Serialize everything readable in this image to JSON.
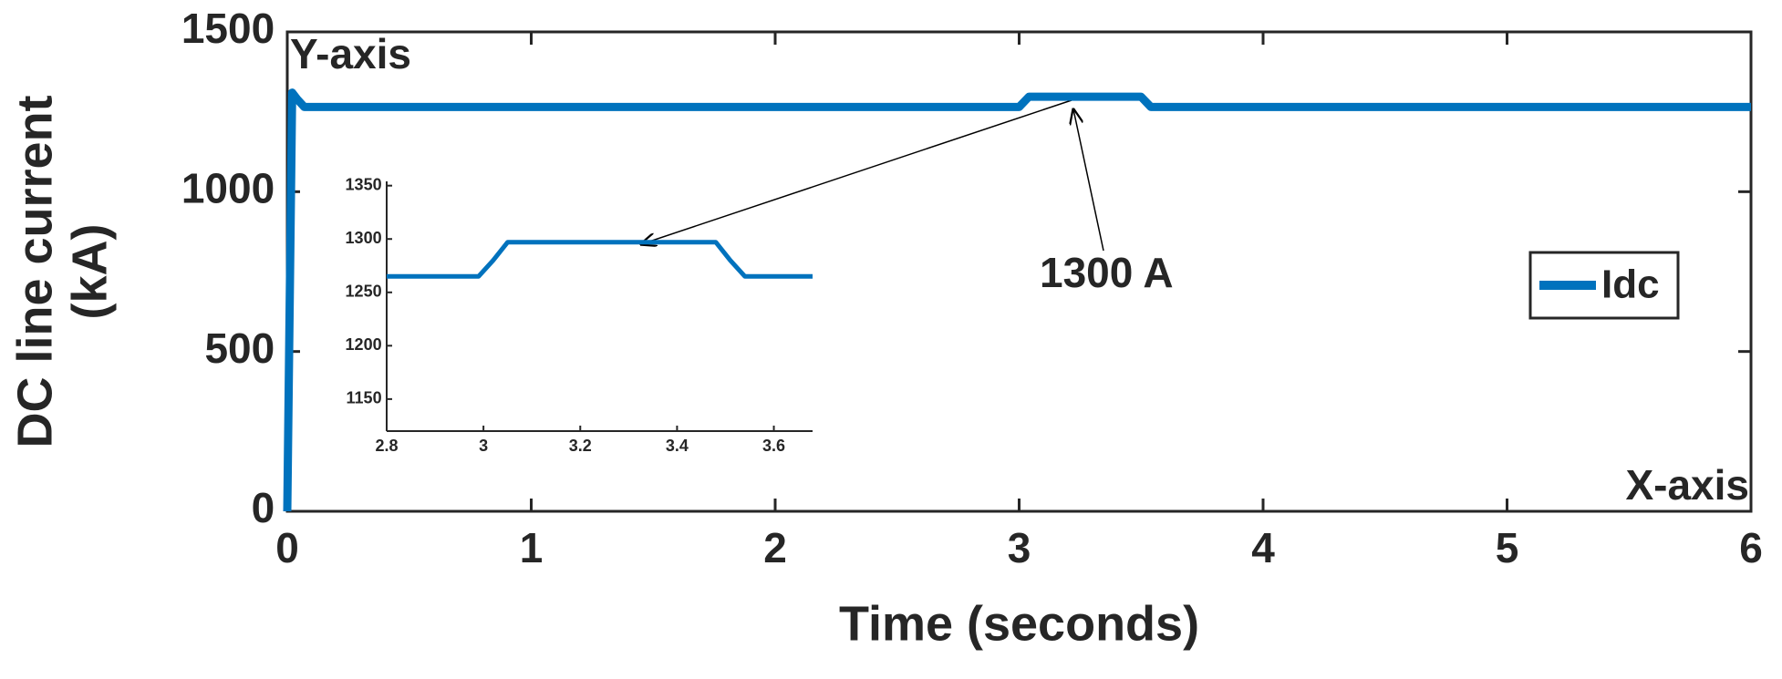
{
  "chart_data": [
    {
      "type": "line",
      "xlabel": "Time (seconds)",
      "ylabel": [
        "DC line current",
        "(kA)"
      ],
      "annotations": [
        "Y-axis",
        "X-axis",
        "1300 A"
      ],
      "x": [
        0,
        0.02,
        0.04,
        0.07,
        3.0,
        3.04,
        3.5,
        3.54,
        6
      ],
      "series": [
        {
          "name": "Idc",
          "color": "#0072bd",
          "values": [
            0,
            1310,
            1290,
            1265,
            1265,
            1297,
            1297,
            1265,
            1265
          ]
        }
      ],
      "xlim": [
        0,
        6
      ],
      "ylim": [
        0,
        1500
      ],
      "xticks": [
        0,
        1,
        2,
        3,
        4,
        5,
        6
      ],
      "yticks": [
        0,
        500,
        1000,
        1500
      ],
      "grid": false,
      "legend": "right"
    },
    {
      "type": "line",
      "x": [
        2.8,
        2.99,
        3.02,
        3.05,
        3.48,
        3.51,
        3.54,
        3.68
      ],
      "series": [
        {
          "color": "#0072bd",
          "values": [
            1265,
            1265,
            1280,
            1297,
            1297,
            1280,
            1265,
            1265
          ]
        }
      ],
      "xlim": [
        2.8,
        3.68
      ],
      "ylim": [
        1120,
        1354
      ],
      "xticks": [
        2.8,
        3,
        3.2,
        3.4,
        3.6
      ],
      "yticks": [
        1150,
        1200,
        1250,
        1300,
        1350
      ],
      "grid": false
    }
  ]
}
